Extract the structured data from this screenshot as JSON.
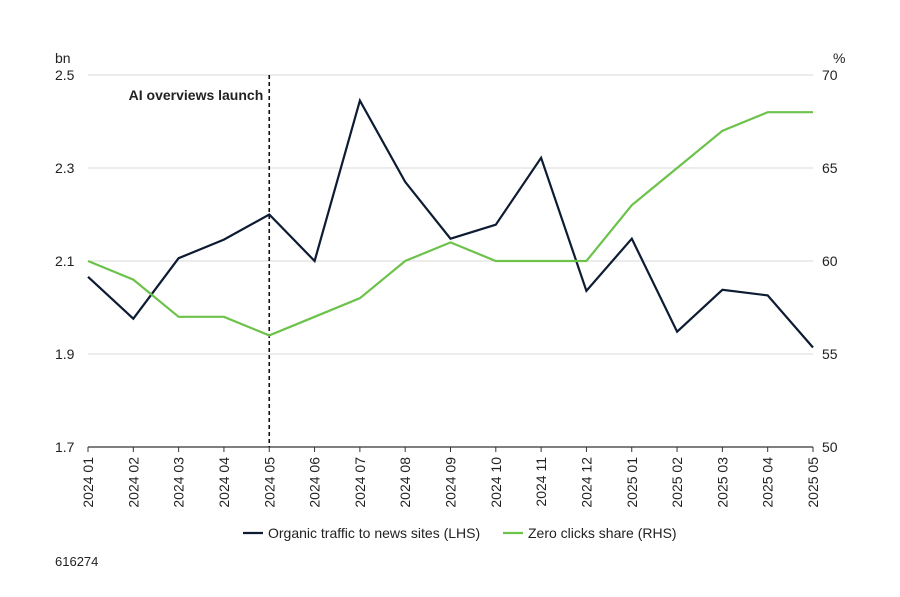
{
  "chart_data": {
    "type": "line",
    "categories": [
      "2024 01",
      "2024 02",
      "2024 03",
      "2024 04",
      "2024 05",
      "2024 06",
      "2024 07",
      "2024 08",
      "2024 09",
      "2024 10",
      "2024 11",
      "2024 12",
      "2025 01",
      "2025 02",
      "2025 03",
      "2025 04",
      "2025 05"
    ],
    "series": [
      {
        "name": "Organic traffic to news sites (LHS)",
        "axis": "left",
        "color": "#0d1b33",
        "values": [
          2.066,
          1.976,
          2.106,
          2.146,
          2.2,
          2.1,
          2.445,
          2.27,
          2.148,
          2.178,
          2.322,
          2.036,
          2.148,
          1.948,
          2.038,
          2.026,
          1.914
        ]
      },
      {
        "name": "Zero clicks share (RHS)",
        "axis": "right",
        "color": "#6cc24a",
        "values": [
          60,
          59,
          57,
          57,
          56,
          57,
          58,
          60,
          61,
          60,
          60,
          60,
          63,
          65,
          67,
          68,
          68
        ]
      }
    ],
    "left_axis": {
      "unit": "bn",
      "ylim": [
        1.7,
        2.5
      ],
      "ticks": [
        "1.7",
        "1.9",
        "2.1",
        "2.3",
        "2.5"
      ],
      "tick_values": [
        1.7,
        1.9,
        2.1,
        2.3,
        2.5
      ]
    },
    "right_axis": {
      "unit": "%",
      "ylim": [
        50,
        70
      ],
      "ticks": [
        "50",
        "55",
        "60",
        "65",
        "70"
      ],
      "tick_values": [
        50,
        55,
        60,
        65,
        70
      ]
    },
    "annotation": {
      "label": "AI overviews launch",
      "category": "2024 05"
    },
    "grid": true,
    "legend_position": "bottom"
  },
  "footer": {
    "code": "616274"
  }
}
